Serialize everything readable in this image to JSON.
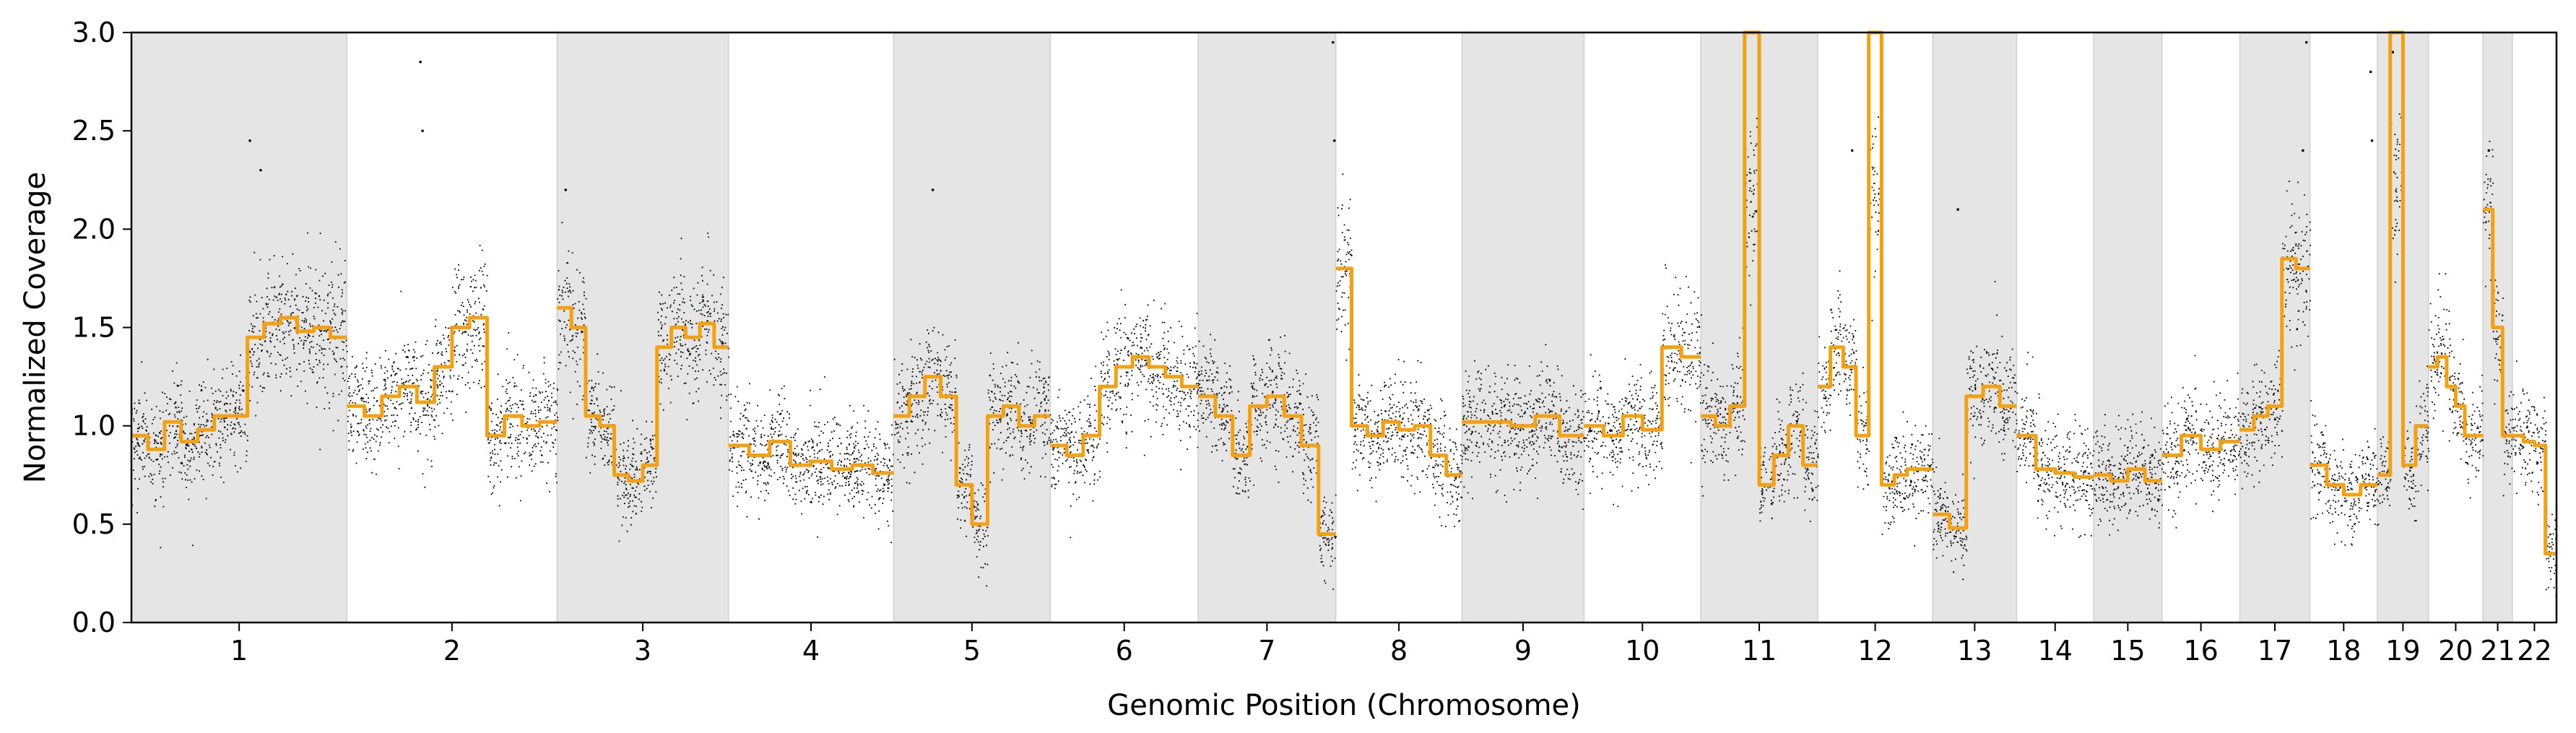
{
  "chart_data": {
    "type": "scatter",
    "xlabel": "Genomic Position (Chromosome)",
    "ylabel": "Normalized Coverage",
    "ylim": [
      0.0,
      3.0
    ],
    "yticks": [
      "0.0",
      "0.5",
      "1.0",
      "1.5",
      "2.0",
      "2.5",
      "3.0"
    ],
    "yticks_values": [
      0.0,
      0.5,
      1.0,
      1.5,
      2.0,
      2.5,
      3.0
    ],
    "grid": false,
    "legend": "none",
    "colors": {
      "points": "#000000",
      "segments": "#f5a00f",
      "band": "#e5e5e5"
    },
    "chromosomes": [
      {
        "label": "1",
        "size": 249,
        "shaded": true
      },
      {
        "label": "2",
        "size": 243,
        "shaded": false
      },
      {
        "label": "3",
        "size": 198,
        "shaded": true
      },
      {
        "label": "4",
        "size": 191,
        "shaded": false
      },
      {
        "label": "5",
        "size": 181,
        "shaded": true
      },
      {
        "label": "6",
        "size": 171,
        "shaded": false
      },
      {
        "label": "7",
        "size": 159,
        "shaded": true
      },
      {
        "label": "8",
        "size": 146,
        "shaded": false
      },
      {
        "label": "9",
        "size": 141,
        "shaded": true
      },
      {
        "label": "10",
        "size": 135,
        "shaded": false
      },
      {
        "label": "11",
        "size": 135,
        "shaded": true
      },
      {
        "label": "12",
        "size": 133,
        "shaded": false
      },
      {
        "label": "13",
        "size": 97,
        "shaded": true
      },
      {
        "label": "14",
        "size": 89,
        "shaded": false
      },
      {
        "label": "15",
        "size": 79,
        "shaded": true
      },
      {
        "label": "16",
        "size": 90,
        "shaded": false
      },
      {
        "label": "17",
        "size": 81,
        "shaded": true
      },
      {
        "label": "18",
        "size": 78,
        "shaded": false
      },
      {
        "label": "19",
        "size": 59,
        "shaded": true
      },
      {
        "label": "20",
        "size": 63,
        "shaded": false
      },
      {
        "label": "21",
        "size": 34,
        "shaded": true
      },
      {
        "label": "22",
        "size": 51,
        "shaded": false
      }
    ],
    "segments": [
      {
        "chrom": "1",
        "levels": [
          0.95,
          0.88,
          1.02,
          0.92,
          0.98,
          1.05,
          1.05,
          1.45,
          1.52,
          1.55,
          1.48,
          1.5,
          1.45
        ]
      },
      {
        "chrom": "2",
        "levels": [
          1.1,
          1.05,
          1.15,
          1.2,
          1.12,
          1.3,
          1.5,
          1.55,
          0.95,
          1.05,
          1.0,
          1.02
        ]
      },
      {
        "chrom": "3",
        "levels": [
          1.6,
          1.5,
          1.05,
          1.0,
          0.75,
          0.72,
          0.8,
          1.4,
          1.5,
          1.45,
          1.52,
          1.4
        ]
      },
      {
        "chrom": "4",
        "levels": [
          0.9,
          0.85,
          0.92,
          0.8,
          0.82,
          0.78,
          0.8,
          0.76
        ]
      },
      {
        "chrom": "5",
        "levels": [
          1.05,
          1.15,
          1.25,
          1.15,
          0.7,
          0.5,
          1.05,
          1.1,
          1.0,
          1.05
        ]
      },
      {
        "chrom": "6",
        "levels": [
          0.9,
          0.85,
          0.95,
          1.2,
          1.3,
          1.35,
          1.3,
          1.25,
          1.2
        ]
      },
      {
        "chrom": "7",
        "levels": [
          1.15,
          1.05,
          0.85,
          1.1,
          1.15,
          1.05,
          0.9,
          0.45
        ]
      },
      {
        "chrom": "8",
        "levels": [
          1.8,
          1.0,
          0.95,
          1.02,
          0.98,
          1.0,
          0.85,
          0.75
        ]
      },
      {
        "chrom": "9",
        "levels": [
          1.02,
          1.02,
          1.0,
          1.05,
          0.95
        ]
      },
      {
        "chrom": "10",
        "levels": [
          1.0,
          0.95,
          1.05,
          0.98,
          1.4,
          1.35
        ]
      },
      {
        "chrom": "11",
        "levels": [
          1.05,
          1.0,
          1.1,
          3.0,
          0.7,
          0.85,
          1.0,
          0.8
        ]
      },
      {
        "chrom": "12",
        "levels": [
          1.2,
          1.4,
          1.3,
          0.95,
          3.0,
          0.7,
          0.75,
          0.78,
          0.78
        ]
      },
      {
        "chrom": "13",
        "levels": [
          0.55,
          0.48,
          1.15,
          1.2,
          1.1
        ]
      },
      {
        "chrom": "14",
        "levels": [
          0.95,
          0.78,
          0.76,
          0.74
        ]
      },
      {
        "chrom": "15",
        "levels": [
          0.75,
          0.72,
          0.78,
          0.72
        ]
      },
      {
        "chrom": "16",
        "levels": [
          0.85,
          0.95,
          0.88,
          0.92
        ]
      },
      {
        "chrom": "17",
        "levels": [
          0.98,
          1.05,
          1.1,
          1.85,
          1.8
        ]
      },
      {
        "chrom": "18",
        "levels": [
          0.8,
          0.7,
          0.65,
          0.7
        ]
      },
      {
        "chrom": "19",
        "levels": [
          0.75,
          3.0,
          0.8,
          1.0
        ]
      },
      {
        "chrom": "20",
        "levels": [
          1.3,
          1.35,
          1.2,
          1.1,
          0.95,
          0.95
        ]
      },
      {
        "chrom": "21",
        "levels": [
          2.1,
          1.5,
          0.95
        ]
      },
      {
        "chrom": "22",
        "levels": [
          0.95,
          0.92,
          0.9,
          0.35
        ]
      }
    ],
    "outliers": [
      {
        "chrom": "1",
        "position": 0.55,
        "value": 2.45
      },
      {
        "chrom": "1",
        "position": 0.6,
        "value": 2.3
      },
      {
        "chrom": "2",
        "position": 0.35,
        "value": 2.85
      },
      {
        "chrom": "2",
        "position": 0.36,
        "value": 2.5
      },
      {
        "chrom": "3",
        "position": 0.05,
        "value": 2.2
      },
      {
        "chrom": "5",
        "position": 0.25,
        "value": 2.2
      },
      {
        "chrom": "7",
        "position": 0.98,
        "value": 2.95
      },
      {
        "chrom": "7",
        "position": 0.99,
        "value": 2.45
      },
      {
        "chrom": "12",
        "position": 0.3,
        "value": 2.4
      },
      {
        "chrom": "13",
        "position": 0.3,
        "value": 2.1
      },
      {
        "chrom": "17",
        "position": 0.95,
        "value": 2.95
      },
      {
        "chrom": "17",
        "position": 0.9,
        "value": 2.4
      },
      {
        "chrom": "18",
        "position": 0.9,
        "value": 2.8
      },
      {
        "chrom": "18",
        "position": 0.92,
        "value": 2.45
      },
      {
        "chrom": "19",
        "position": 0.3,
        "value": 2.9
      },
      {
        "chrom": "21",
        "position": 0.2,
        "value": 2.4
      }
    ]
  }
}
